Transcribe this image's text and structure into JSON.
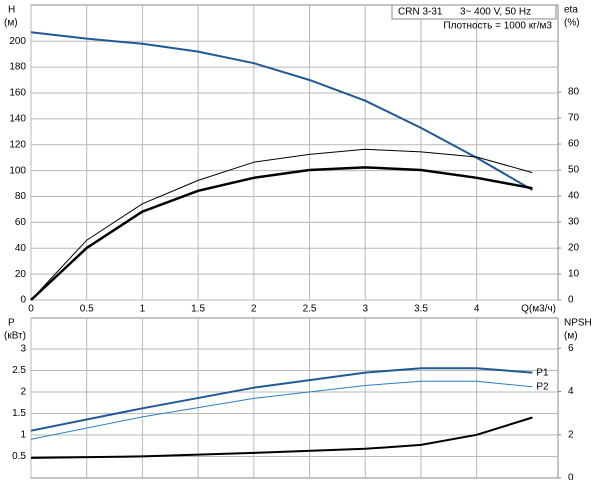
{
  "chart_data": [
    {
      "type": "line",
      "y_label": "H",
      "y_unit": "(м)",
      "y2_label": "eta",
      "y2_unit": "(%)",
      "x_label": "Q(м3/ч)",
      "model": "CRN 3-31",
      "supply": "3~ 400 V, 50 Hz",
      "density": "Плотность = 1000 кг/м3",
      "x": [
        0,
        0.5,
        1,
        1.5,
        2,
        2.5,
        3,
        3.5,
        4,
        4.5
      ],
      "xlim": [
        0,
        4.73
      ],
      "xticks": [
        0,
        0.5,
        1,
        1.5,
        2,
        2.5,
        3,
        3.5,
        4
      ],
      "show_xtick_labels": true,
      "ylim": [
        0,
        228
      ],
      "yticks": [
        0,
        20,
        40,
        60,
        80,
        100,
        120,
        140,
        160,
        180,
        200
      ],
      "y2lim": [
        0,
        113.5
      ],
      "y2ticks": [
        0,
        10,
        20,
        30,
        40,
        50,
        60,
        70,
        80
      ],
      "grid": true,
      "series": [
        {
          "color": "#1f5a96",
          "width": 2,
          "values": [
            207,
            202,
            198,
            192,
            183,
            170,
            154,
            133,
            110,
            85
          ]
        },
        {
          "color": "#000000",
          "width": 1,
          "axis": "y2",
          "values": [
            0,
            23,
            37,
            46,
            53,
            56,
            58,
            57,
            55,
            49
          ]
        },
        {
          "color": "#000000",
          "width": 2.5,
          "axis": "y2",
          "values": [
            0,
            20,
            34,
            42,
            47,
            50,
            51,
            50,
            47,
            43
          ]
        }
      ]
    },
    {
      "type": "line",
      "y_label": "P",
      "y_unit": "(кВт)",
      "y2_label": "NPSH",
      "y2_unit": "(м)",
      "x": [
        0,
        1,
        2,
        3,
        3.5,
        4,
        4.5
      ],
      "xlim": [
        0,
        4.73
      ],
      "xticks": [
        0,
        0.5,
        1,
        1.5,
        2,
        2.5,
        3,
        3.5,
        4
      ],
      "show_xtick_labels": false,
      "ylim": [
        0,
        3.72
      ],
      "yticks": [
        0.5,
        1,
        1.5,
        2,
        2.5,
        3
      ],
      "y2lim": [
        0,
        7.4
      ],
      "y2ticks": [
        0,
        2,
        4,
        6
      ],
      "grid": true,
      "series": [
        {
          "name": "P1",
          "color": "#1f5a96",
          "width": 2,
          "values": [
            1.1,
            1.62,
            2.1,
            2.45,
            2.55,
            2.55,
            2.45
          ]
        },
        {
          "name": "P2",
          "color": "#2e7cc0",
          "width": 1,
          "values": [
            0.9,
            1.42,
            1.85,
            2.15,
            2.25,
            2.25,
            2.12
          ]
        },
        {
          "color": "#000000",
          "width": 2,
          "axis": "y2",
          "values": [
            0.93,
            1.0,
            1.16,
            1.35,
            1.53,
            2.0,
            2.8
          ]
        }
      ]
    }
  ]
}
